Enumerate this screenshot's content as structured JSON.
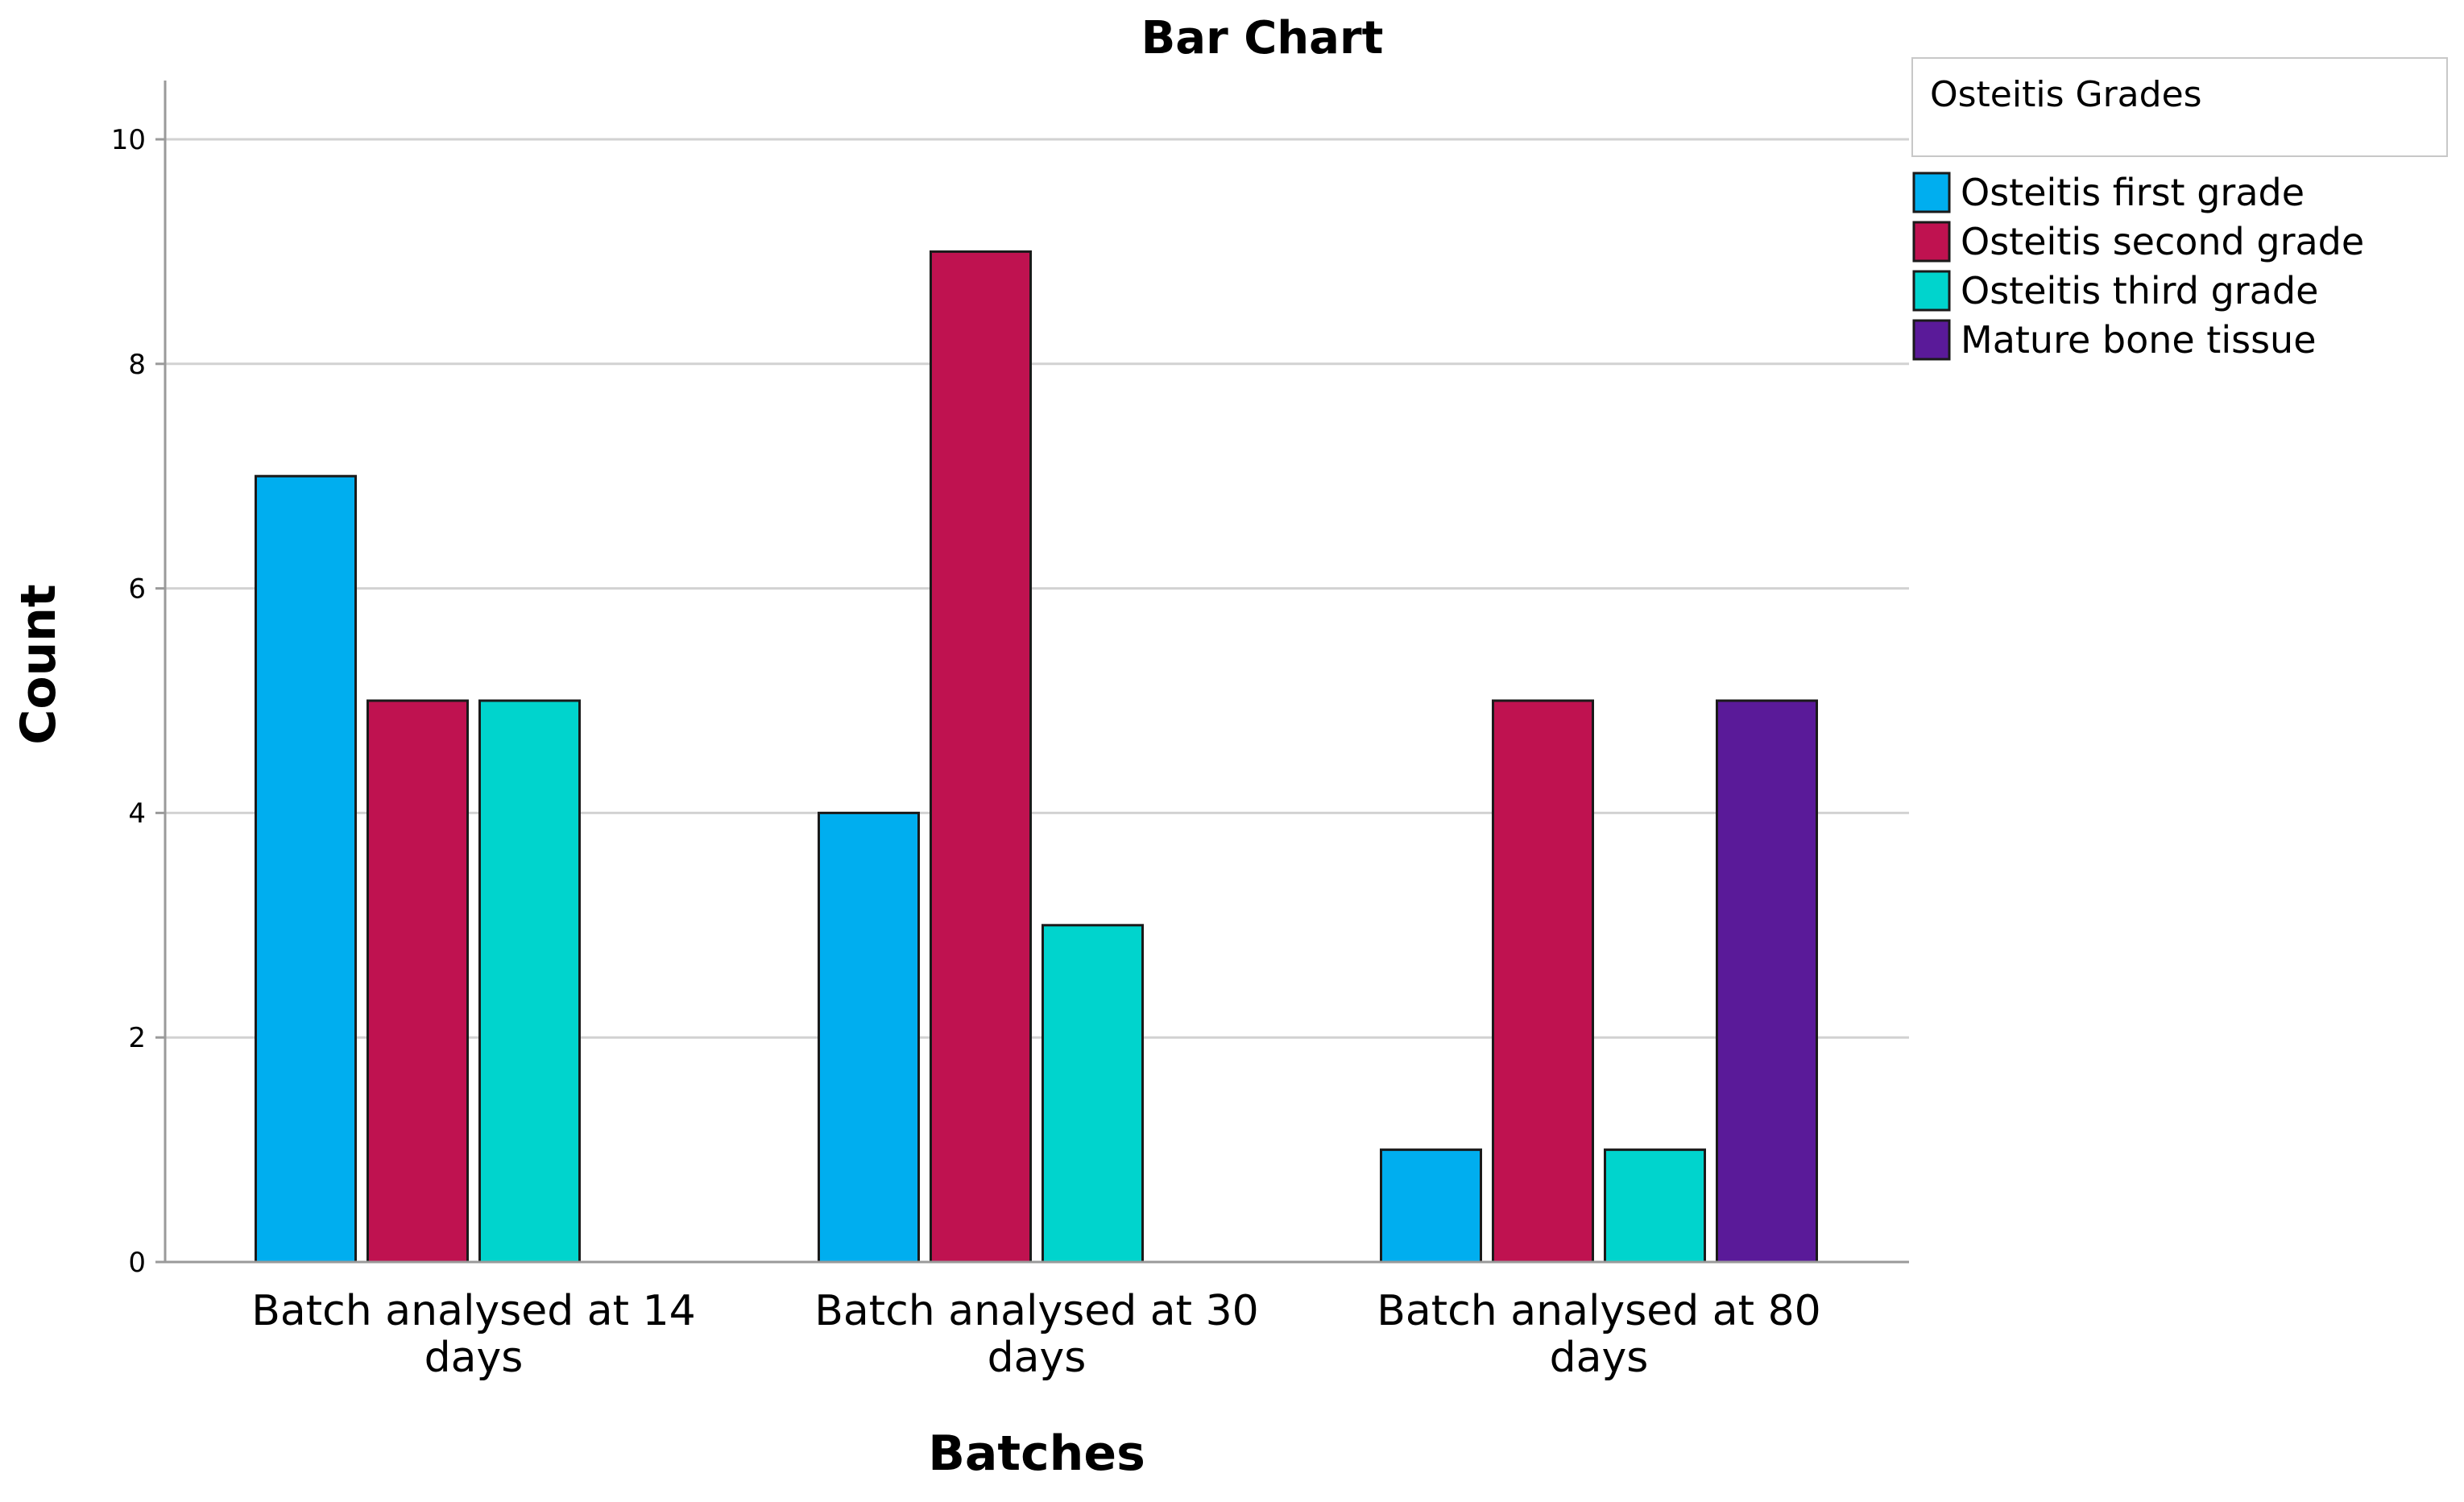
{
  "chart_data": {
    "type": "bar",
    "title": "Bar Chart",
    "xlabel": "Batches",
    "ylabel": "Count",
    "ylim": [
      0,
      10
    ],
    "yticks": [
      0,
      2,
      4,
      6,
      8,
      10
    ],
    "grid": true,
    "legend_position": "top-right",
    "legend_title": "Osteitis Grades",
    "categories": [
      [
        "Batch analysed at 14",
        "days"
      ],
      [
        "Batch analysed at 30",
        "days"
      ],
      [
        "Batch analysed at 80",
        "days"
      ]
    ],
    "series": [
      {
        "name": "Osteitis first grade",
        "color": "#00AEEF",
        "values": [
          7,
          4,
          1
        ]
      },
      {
        "name": "Osteitis second grade",
        "color": "#BF1250",
        "values": [
          5,
          9,
          5
        ]
      },
      {
        "name": "Osteitis third grade",
        "color": "#00D4CD",
        "values": [
          5,
          3,
          1
        ]
      },
      {
        "name": "Mature bone tissue",
        "color": "#5A1A99",
        "values": [
          0,
          0,
          5
        ]
      }
    ]
  }
}
